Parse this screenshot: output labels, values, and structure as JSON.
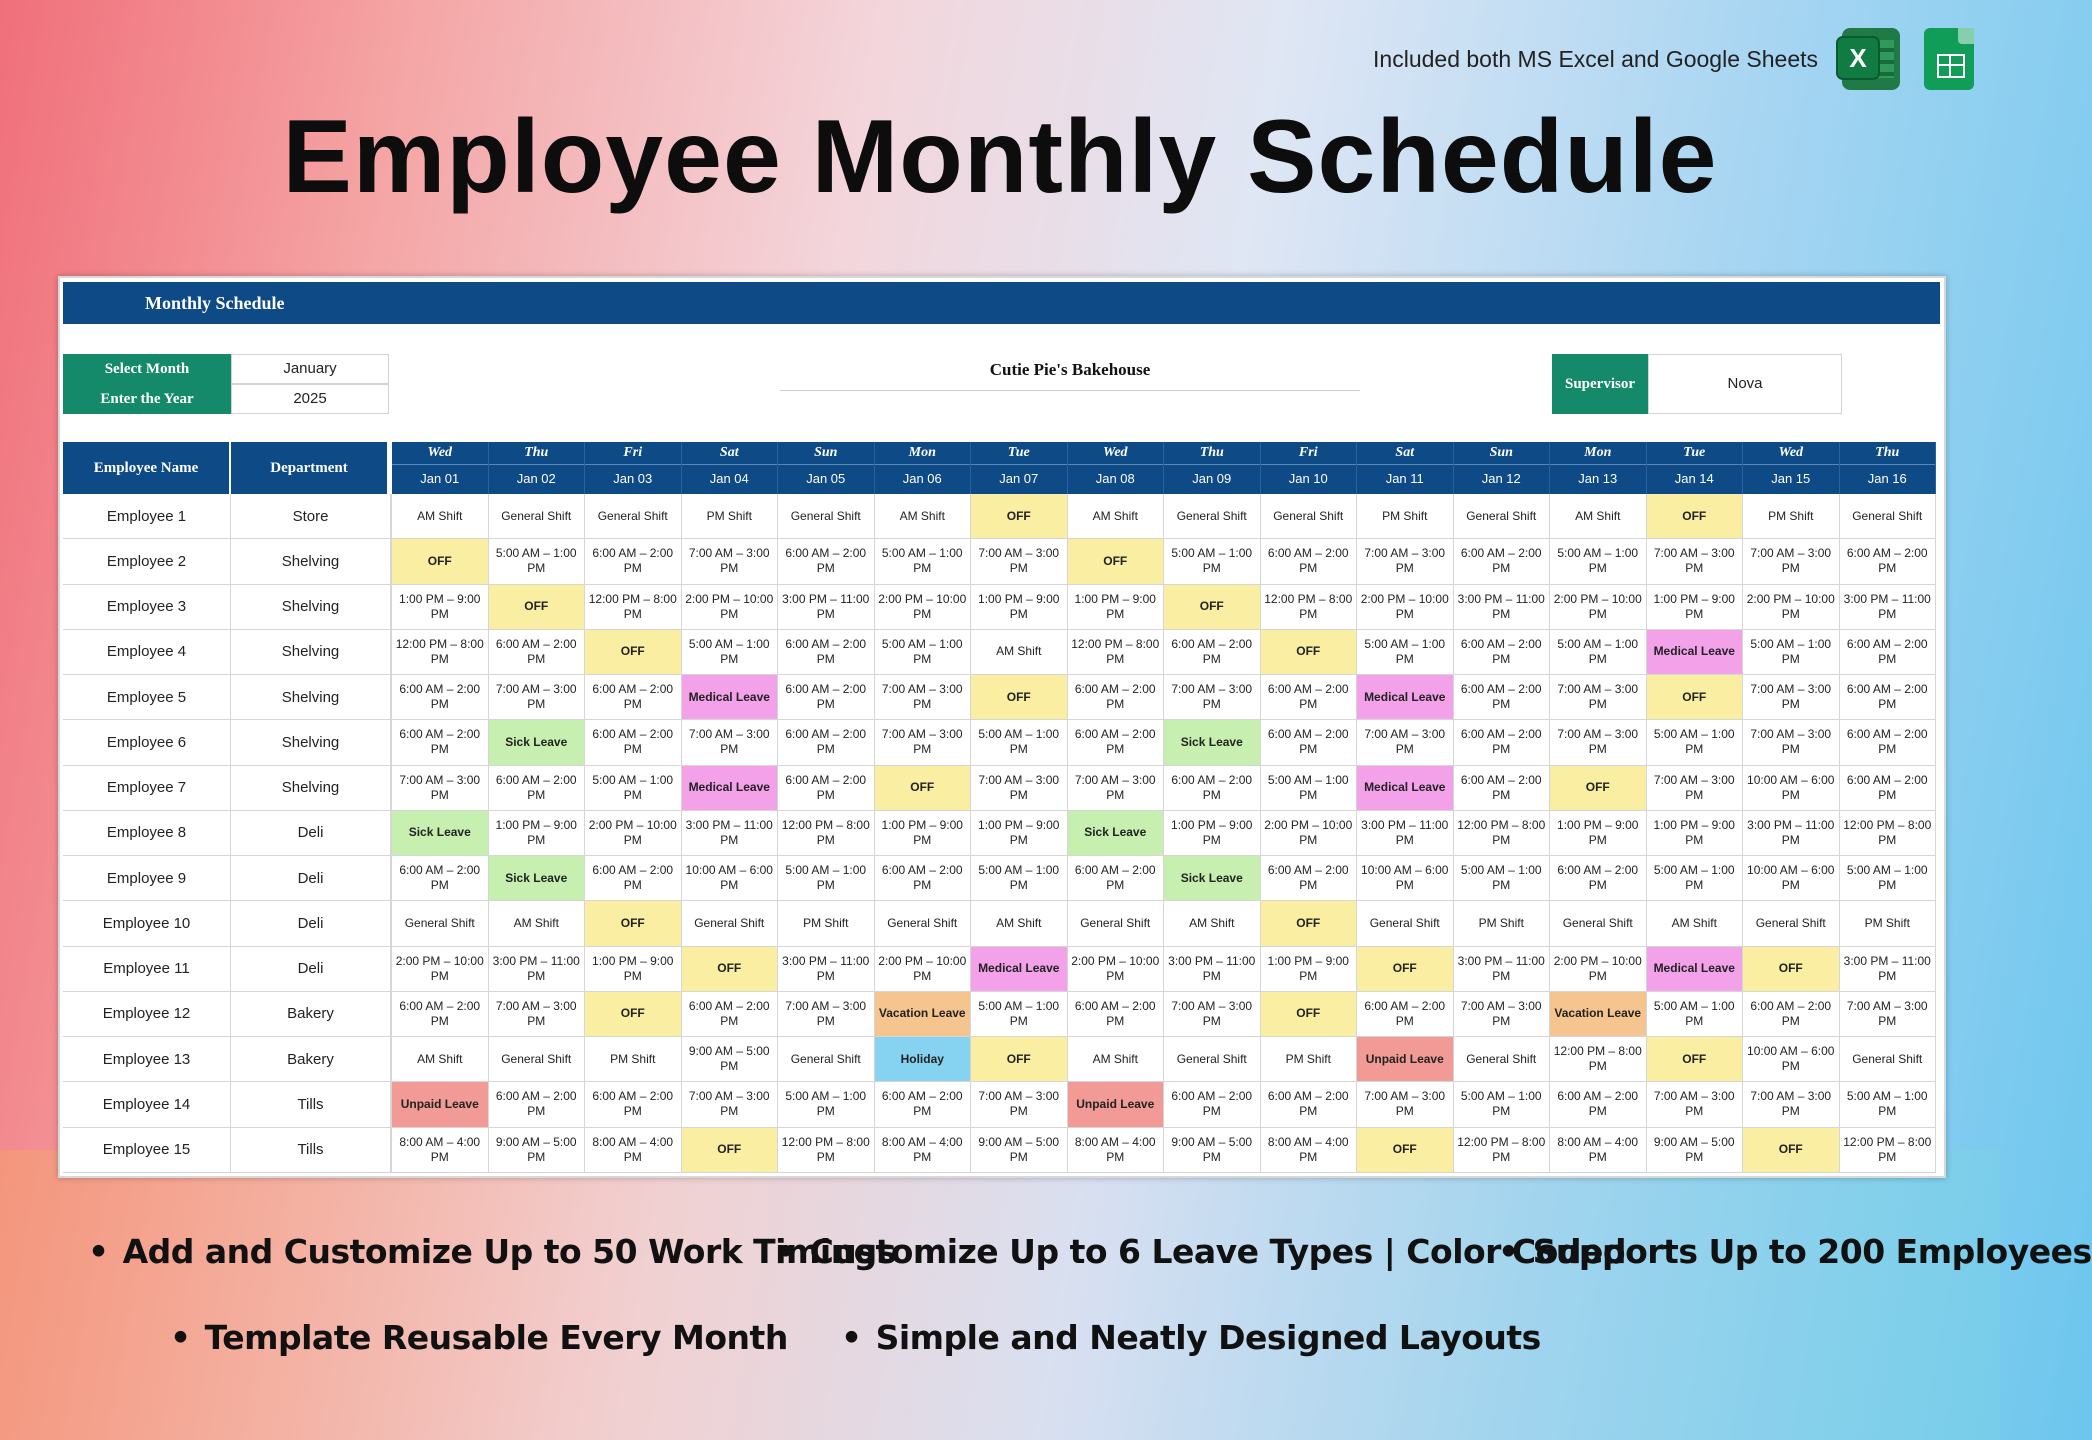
{
  "header": {
    "note": "Included both MS Excel and Google Sheets",
    "excel_icon": "excel-icon",
    "excel_letter": "X",
    "sheets_icon": "google-sheets-icon",
    "title": "Employee Monthly Schedule"
  },
  "sheet": {
    "banner": "Monthly Schedule",
    "select_month_label": "Select Month",
    "select_month_value": "January",
    "year_label": "Enter the Year",
    "year_value": "2025",
    "company": "Cutie Pie's Bakehouse",
    "supervisor_label": "Supervisor",
    "supervisor_value": "Nova",
    "col_employee": "Employee Name",
    "col_department": "Department"
  },
  "days": [
    {
      "dow": "Wed",
      "date": "Jan 01"
    },
    {
      "dow": "Thu",
      "date": "Jan 02"
    },
    {
      "dow": "Fri",
      "date": "Jan 03"
    },
    {
      "dow": "Sat",
      "date": "Jan 04"
    },
    {
      "dow": "Sun",
      "date": "Jan 05"
    },
    {
      "dow": "Mon",
      "date": "Jan 06"
    },
    {
      "dow": "Tue",
      "date": "Jan 07"
    },
    {
      "dow": "Wed",
      "date": "Jan 08"
    },
    {
      "dow": "Thu",
      "date": "Jan 09"
    },
    {
      "dow": "Fri",
      "date": "Jan 10"
    },
    {
      "dow": "Sat",
      "date": "Jan 11"
    },
    {
      "dow": "Sun",
      "date": "Jan 12"
    },
    {
      "dow": "Mon",
      "date": "Jan 13"
    },
    {
      "dow": "Tue",
      "date": "Jan 14"
    },
    {
      "dow": "Wed",
      "date": "Jan 15"
    },
    {
      "dow": "Thu",
      "date": "Jan 16"
    }
  ],
  "employees": [
    {
      "name": "Employee 1",
      "dept": "Store",
      "shifts": [
        "AM Shift",
        "General Shift",
        "General Shift",
        "PM Shift",
        "General Shift",
        "AM Shift",
        "OFF",
        "AM Shift",
        "General Shift",
        "General Shift",
        "PM Shift",
        "General Shift",
        "AM Shift",
        "OFF",
        "PM Shift",
        "General Shift"
      ]
    },
    {
      "name": "Employee 2",
      "dept": "Shelving",
      "shifts": [
        "OFF",
        "5:00 AM – 1:00 PM",
        "6:00 AM – 2:00 PM",
        "7:00 AM – 3:00 PM",
        "6:00 AM – 2:00 PM",
        "5:00 AM – 1:00 PM",
        "7:00 AM – 3:00 PM",
        "OFF",
        "5:00 AM – 1:00 PM",
        "6:00 AM – 2:00 PM",
        "7:00 AM – 3:00 PM",
        "6:00 AM – 2:00 PM",
        "5:00 AM – 1:00 PM",
        "7:00 AM – 3:00 PM",
        "7:00 AM – 3:00 PM",
        "6:00 AM – 2:00 PM"
      ]
    },
    {
      "name": "Employee 3",
      "dept": "Shelving",
      "shifts": [
        "1:00 PM – 9:00 PM",
        "OFF",
        "12:00 PM – 8:00 PM",
        "2:00 PM – 10:00 PM",
        "3:00 PM – 11:00 PM",
        "2:00 PM – 10:00 PM",
        "1:00 PM – 9:00 PM",
        "1:00 PM – 9:00 PM",
        "OFF",
        "12:00 PM – 8:00 PM",
        "2:00 PM – 10:00 PM",
        "3:00 PM – 11:00 PM",
        "2:00 PM – 10:00 PM",
        "1:00 PM – 9:00 PM",
        "2:00 PM – 10:00 PM",
        "3:00 PM – 11:00 PM"
      ]
    },
    {
      "name": "Employee 4",
      "dept": "Shelving",
      "shifts": [
        "12:00 PM – 8:00 PM",
        "6:00 AM – 2:00 PM",
        "OFF",
        "5:00 AM – 1:00 PM",
        "6:00 AM – 2:00 PM",
        "5:00 AM – 1:00 PM",
        "AM Shift",
        "12:00 PM – 8:00 PM",
        "6:00 AM – 2:00 PM",
        "OFF",
        "5:00 AM – 1:00 PM",
        "6:00 AM – 2:00 PM",
        "5:00 AM – 1:00 PM",
        "Medical Leave",
        "5:00 AM – 1:00 PM",
        "6:00 AM – 2:00 PM"
      ]
    },
    {
      "name": "Employee 5",
      "dept": "Shelving",
      "shifts": [
        "6:00 AM – 2:00 PM",
        "7:00 AM – 3:00 PM",
        "6:00 AM – 2:00 PM",
        "Medical Leave",
        "6:00 AM – 2:00 PM",
        "7:00 AM – 3:00 PM",
        "OFF",
        "6:00 AM – 2:00 PM",
        "7:00 AM – 3:00 PM",
        "6:00 AM – 2:00 PM",
        "Medical Leave",
        "6:00 AM – 2:00 PM",
        "7:00 AM – 3:00 PM",
        "OFF",
        "7:00 AM – 3:00 PM",
        "6:00 AM – 2:00 PM"
      ]
    },
    {
      "name": "Employee 6",
      "dept": "Shelving",
      "shifts": [
        "6:00 AM – 2:00 PM",
        "Sick Leave",
        "6:00 AM – 2:00 PM",
        "7:00 AM – 3:00 PM",
        "6:00 AM – 2:00 PM",
        "7:00 AM – 3:00 PM",
        "5:00 AM – 1:00 PM",
        "6:00 AM – 2:00 PM",
        "Sick Leave",
        "6:00 AM – 2:00 PM",
        "7:00 AM – 3:00 PM",
        "6:00 AM – 2:00 PM",
        "7:00 AM – 3:00 PM",
        "5:00 AM – 1:00 PM",
        "7:00 AM – 3:00 PM",
        "6:00 AM – 2:00 PM"
      ]
    },
    {
      "name": "Employee 7",
      "dept": "Shelving",
      "shifts": [
        "7:00 AM – 3:00 PM",
        "6:00 AM – 2:00 PM",
        "5:00 AM – 1:00 PM",
        "Medical Leave",
        "6:00 AM – 2:00 PM",
        "OFF",
        "7:00 AM – 3:00 PM",
        "7:00 AM – 3:00 PM",
        "6:00 AM – 2:00 PM",
        "5:00 AM – 1:00 PM",
        "Medical Leave",
        "6:00 AM – 2:00 PM",
        "OFF",
        "7:00 AM – 3:00 PM",
        "10:00 AM – 6:00 PM",
        "6:00 AM – 2:00 PM"
      ]
    },
    {
      "name": "Employee 8",
      "dept": "Deli",
      "shifts": [
        "Sick Leave",
        "1:00 PM – 9:00 PM",
        "2:00 PM – 10:00 PM",
        "3:00 PM – 11:00 PM",
        "12:00 PM – 8:00 PM",
        "1:00 PM – 9:00 PM",
        "1:00 PM – 9:00 PM",
        "Sick Leave",
        "1:00 PM – 9:00 PM",
        "2:00 PM – 10:00 PM",
        "3:00 PM – 11:00 PM",
        "12:00 PM – 8:00 PM",
        "1:00 PM – 9:00 PM",
        "1:00 PM – 9:00 PM",
        "3:00 PM – 11:00 PM",
        "12:00 PM – 8:00 PM"
      ]
    },
    {
      "name": "Employee 9",
      "dept": "Deli",
      "shifts": [
        "6:00 AM – 2:00 PM",
        "Sick Leave",
        "6:00 AM – 2:00 PM",
        "10:00 AM – 6:00 PM",
        "5:00 AM – 1:00 PM",
        "6:00 AM – 2:00 PM",
        "5:00 AM – 1:00 PM",
        "6:00 AM – 2:00 PM",
        "Sick Leave",
        "6:00 AM – 2:00 PM",
        "10:00 AM – 6:00 PM",
        "5:00 AM – 1:00 PM",
        "6:00 AM – 2:00 PM",
        "5:00 AM – 1:00 PM",
        "10:00 AM – 6:00 PM",
        "5:00 AM – 1:00 PM"
      ]
    },
    {
      "name": "Employee 10",
      "dept": "Deli",
      "shifts": [
        "General Shift",
        "AM Shift",
        "OFF",
        "General Shift",
        "PM Shift",
        "General Shift",
        "AM Shift",
        "General Shift",
        "AM Shift",
        "OFF",
        "General Shift",
        "PM Shift",
        "General Shift",
        "AM Shift",
        "General Shift",
        "PM Shift"
      ]
    },
    {
      "name": "Employee 11",
      "dept": "Deli",
      "shifts": [
        "2:00 PM – 10:00 PM",
        "3:00 PM – 11:00 PM",
        "1:00 PM – 9:00 PM",
        "OFF",
        "3:00 PM – 11:00 PM",
        "2:00 PM – 10:00 PM",
        "Medical Leave",
        "2:00 PM – 10:00 PM",
        "3:00 PM – 11:00 PM",
        "1:00 PM – 9:00 PM",
        "OFF",
        "3:00 PM – 11:00 PM",
        "2:00 PM – 10:00 PM",
        "Medical Leave",
        "OFF",
        "3:00 PM – 11:00 PM"
      ]
    },
    {
      "name": "Employee 12",
      "dept": "Bakery",
      "shifts": [
        "6:00 AM – 2:00 PM",
        "7:00 AM – 3:00 PM",
        "OFF",
        "6:00 AM – 2:00 PM",
        "7:00 AM – 3:00 PM",
        "Vacation Leave",
        "5:00 AM – 1:00 PM",
        "6:00 AM – 2:00 PM",
        "7:00 AM – 3:00 PM",
        "OFF",
        "6:00 AM – 2:00 PM",
        "7:00 AM – 3:00 PM",
        "Vacation Leave",
        "5:00 AM – 1:00 PM",
        "6:00 AM – 2:00 PM",
        "7:00 AM – 3:00 PM"
      ]
    },
    {
      "name": "Employee 13",
      "dept": "Bakery",
      "shifts": [
        "AM Shift",
        "General Shift",
        "PM Shift",
        "9:00 AM – 5:00 PM",
        "General Shift",
        "Holiday",
        "OFF",
        "AM Shift",
        "General Shift",
        "PM Shift",
        "Unpaid Leave",
        "General Shift",
        "12:00 PM – 8:00 PM",
        "OFF",
        "10:00 AM – 6:00 PM",
        "General Shift"
      ]
    },
    {
      "name": "Employee 14",
      "dept": "Tills",
      "shifts": [
        "Unpaid Leave",
        "6:00 AM – 2:00 PM",
        "6:00 AM – 2:00 PM",
        "7:00 AM – 3:00 PM",
        "5:00 AM – 1:00 PM",
        "6:00 AM – 2:00 PM",
        "7:00 AM – 3:00 PM",
        "Unpaid Leave",
        "6:00 AM – 2:00 PM",
        "6:00 AM – 2:00 PM",
        "7:00 AM – 3:00 PM",
        "5:00 AM – 1:00 PM",
        "6:00 AM – 2:00 PM",
        "7:00 AM – 3:00 PM",
        "7:00 AM – 3:00 PM",
        "5:00 AM – 1:00 PM"
      ]
    },
    {
      "name": "Employee 15",
      "dept": "Tills",
      "shifts": [
        "8:00 AM – 4:00 PM",
        "9:00 AM – 5:00 PM",
        "8:00 AM – 4:00 PM",
        "OFF",
        "12:00 PM – 8:00 PM",
        "8:00 AM – 4:00 PM",
        "9:00 AM – 5:00 PM",
        "8:00 AM – 4:00 PM",
        "9:00 AM – 5:00 PM",
        "8:00 AM – 4:00 PM",
        "OFF",
        "12:00 PM – 8:00 PM",
        "8:00 AM – 4:00 PM",
        "9:00 AM – 5:00 PM",
        "OFF",
        "12:00 PM – 8:00 PM"
      ]
    }
  ],
  "leave_colors": {
    "OFF": "#f9eea2",
    "Sick Leave": "#c7f0b0",
    "Medical Leave": "#f3a2ea",
    "Vacation Leave": "#f6c48f",
    "Holiday": "#86d3f1",
    "Unpaid Leave": "#f19a96"
  },
  "features": [
    "Add and Customize Up to 50 Work Timings",
    "Customize Up to 6 Leave Types | Color Coded",
    "Supports Up to 200 Employees",
    "Template Reusable Every Month",
    "Simple and Neatly Designed Layouts"
  ]
}
